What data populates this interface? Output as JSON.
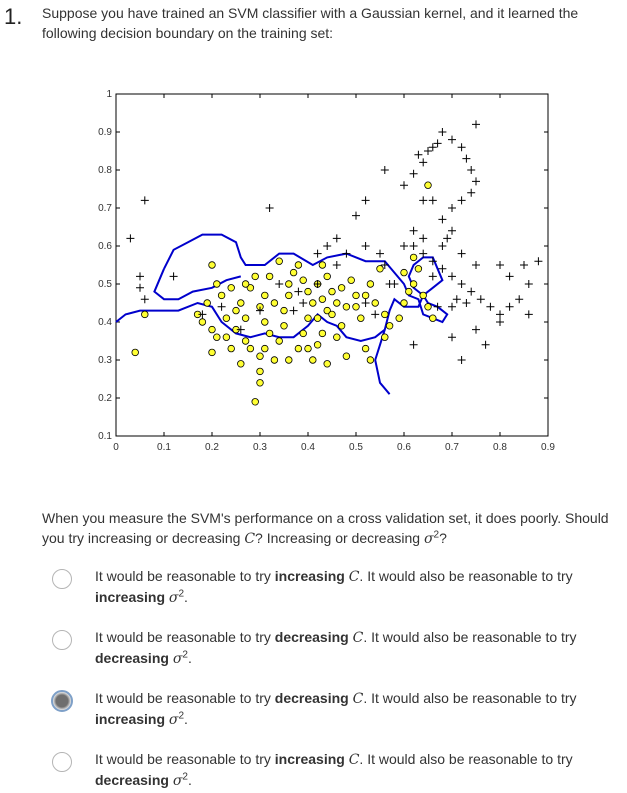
{
  "question": {
    "number": "1.",
    "text": "Suppose you have trained an SVM classifier with a Gaussian kernel, and it learned the following decision boundary on the training set:",
    "followup_a": "When you measure the SVM's performance on a cross validation set, it does poorly. Should you try increasing or decreasing",
    "followup_b": "? Increasing or decreasing",
    "followup_c": "?",
    "C": "C",
    "sigma": "σ",
    "sq": "2"
  },
  "options": [
    {
      "prefix": "It would be reasonable to try",
      "action1": "increasing",
      "mid": ". It would also be reasonable to try",
      "action2": "increasing",
      "selected": false
    },
    {
      "prefix": "It would be reasonable to try",
      "action1": "decreasing",
      "mid": ". It would also be reasonable to try",
      "action2": "decreasing",
      "selected": false
    },
    {
      "prefix": "It would be reasonable to try",
      "action1": "decreasing",
      "mid": ". It would also be reasonable to try",
      "action2": "increasing",
      "selected": true
    },
    {
      "prefix": "It would be reasonable to try",
      "action1": "increasing",
      "mid": ". It would also be reasonable to try",
      "action2": "decreasing",
      "selected": false
    }
  ],
  "chart_data": {
    "type": "scatter",
    "xlim": [
      0,
      0.9
    ],
    "ylim": [
      0.1,
      1
    ],
    "xticks": [
      "0",
      "0.1",
      "0.2",
      "0.3",
      "0.4",
      "0.5",
      "0.6",
      "0.7",
      "0.8",
      "0.9"
    ],
    "yticks": [
      "0.1",
      "0.2",
      "0.3",
      "0.4",
      "0.5",
      "0.6",
      "0.7",
      "0.8",
      "0.9",
      "1"
    ],
    "colors": {
      "negative_fill": "#ffff33",
      "boundary": "#0000cc",
      "positive": "#000000"
    },
    "series": [
      {
        "marker": "circle",
        "points": [
          [
            0.06,
            0.42
          ],
          [
            0.04,
            0.32
          ],
          [
            0.2,
            0.32
          ],
          [
            0.2,
            0.38
          ],
          [
            0.17,
            0.42
          ],
          [
            0.22,
            0.47
          ],
          [
            0.24,
            0.49
          ],
          [
            0.23,
            0.41
          ],
          [
            0.25,
            0.43
          ],
          [
            0.26,
            0.45
          ],
          [
            0.27,
            0.41
          ],
          [
            0.25,
            0.38
          ],
          [
            0.23,
            0.36
          ],
          [
            0.27,
            0.35
          ],
          [
            0.28,
            0.33
          ],
          [
            0.26,
            0.29
          ],
          [
            0.3,
            0.31
          ],
          [
            0.3,
            0.27
          ],
          [
            0.33,
            0.3
          ],
          [
            0.31,
            0.33
          ],
          [
            0.32,
            0.37
          ],
          [
            0.34,
            0.35
          ],
          [
            0.35,
            0.39
          ],
          [
            0.3,
            0.44
          ],
          [
            0.31,
            0.47
          ],
          [
            0.33,
            0.45
          ],
          [
            0.35,
            0.43
          ],
          [
            0.36,
            0.47
          ],
          [
            0.36,
            0.5
          ],
          [
            0.37,
            0.53
          ],
          [
            0.38,
            0.55
          ],
          [
            0.39,
            0.51
          ],
          [
            0.4,
            0.48
          ],
          [
            0.41,
            0.45
          ],
          [
            0.4,
            0.41
          ],
          [
            0.39,
            0.37
          ],
          [
            0.38,
            0.33
          ],
          [
            0.36,
            0.3
          ],
          [
            0.4,
            0.33
          ],
          [
            0.42,
            0.34
          ],
          [
            0.43,
            0.37
          ],
          [
            0.42,
            0.41
          ],
          [
            0.44,
            0.43
          ],
          [
            0.43,
            0.46
          ],
          [
            0.42,
            0.5
          ],
          [
            0.44,
            0.52
          ],
          [
            0.43,
            0.55
          ],
          [
            0.45,
            0.48
          ],
          [
            0.46,
            0.45
          ],
          [
            0.45,
            0.42
          ],
          [
            0.47,
            0.39
          ],
          [
            0.46,
            0.36
          ],
          [
            0.48,
            0.44
          ],
          [
            0.47,
            0.49
          ],
          [
            0.49,
            0.51
          ],
          [
            0.5,
            0.47
          ],
          [
            0.5,
            0.44
          ],
          [
            0.51,
            0.41
          ],
          [
            0.52,
            0.47
          ],
          [
            0.53,
            0.5
          ],
          [
            0.55,
            0.54
          ],
          [
            0.54,
            0.45
          ],
          [
            0.56,
            0.42
          ],
          [
            0.57,
            0.39
          ],
          [
            0.59,
            0.41
          ],
          [
            0.6,
            0.45
          ],
          [
            0.61,
            0.48
          ],
          [
            0.62,
            0.5
          ],
          [
            0.64,
            0.47
          ],
          [
            0.65,
            0.44
          ],
          [
            0.66,
            0.41
          ],
          [
            0.63,
            0.54
          ],
          [
            0.62,
            0.57
          ],
          [
            0.6,
            0.53
          ],
          [
            0.65,
            0.76
          ],
          [
            0.28,
            0.49
          ],
          [
            0.29,
            0.52
          ],
          [
            0.32,
            0.52
          ],
          [
            0.34,
            0.56
          ],
          [
            0.2,
            0.55
          ],
          [
            0.27,
            0.5
          ],
          [
            0.31,
            0.4
          ],
          [
            0.44,
            0.29
          ],
          [
            0.41,
            0.3
          ],
          [
            0.48,
            0.31
          ],
          [
            0.29,
            0.19
          ],
          [
            0.3,
            0.24
          ],
          [
            0.24,
            0.33
          ],
          [
            0.21,
            0.36
          ],
          [
            0.18,
            0.4
          ],
          [
            0.19,
            0.45
          ],
          [
            0.21,
            0.5
          ],
          [
            0.52,
            0.33
          ],
          [
            0.53,
            0.3
          ],
          [
            0.56,
            0.36
          ]
        ]
      },
      {
        "marker": "plus",
        "points": [
          [
            0.06,
            0.46
          ],
          [
            0.05,
            0.49
          ],
          [
            0.12,
            0.52
          ],
          [
            0.05,
            0.52
          ],
          [
            0.06,
            0.72
          ],
          [
            0.03,
            0.62
          ],
          [
            0.18,
            0.42
          ],
          [
            0.22,
            0.44
          ],
          [
            0.26,
            0.38
          ],
          [
            0.3,
            0.43
          ],
          [
            0.37,
            0.43
          ],
          [
            0.39,
            0.45
          ],
          [
            0.46,
            0.55
          ],
          [
            0.48,
            0.58
          ],
          [
            0.52,
            0.6
          ],
          [
            0.55,
            0.58
          ],
          [
            0.56,
            0.55
          ],
          [
            0.58,
            0.5
          ],
          [
            0.6,
            0.6
          ],
          [
            0.62,
            0.6
          ],
          [
            0.64,
            0.58
          ],
          [
            0.66,
            0.56
          ],
          [
            0.68,
            0.54
          ],
          [
            0.7,
            0.52
          ],
          [
            0.72,
            0.5
          ],
          [
            0.74,
            0.48
          ],
          [
            0.76,
            0.46
          ],
          [
            0.78,
            0.44
          ],
          [
            0.8,
            0.42
          ],
          [
            0.82,
            0.44
          ],
          [
            0.84,
            0.46
          ],
          [
            0.86,
            0.42
          ],
          [
            0.7,
            0.36
          ],
          [
            0.75,
            0.38
          ],
          [
            0.8,
            0.4
          ],
          [
            0.77,
            0.34
          ],
          [
            0.72,
            0.3
          ],
          [
            0.62,
            0.34
          ],
          [
            0.67,
            0.44
          ],
          [
            0.7,
            0.44
          ],
          [
            0.71,
            0.46
          ],
          [
            0.73,
            0.45
          ],
          [
            0.6,
            0.76
          ],
          [
            0.62,
            0.79
          ],
          [
            0.64,
            0.82
          ],
          [
            0.65,
            0.85
          ],
          [
            0.67,
            0.87
          ],
          [
            0.7,
            0.88
          ],
          [
            0.72,
            0.86
          ],
          [
            0.73,
            0.83
          ],
          [
            0.74,
            0.8
          ],
          [
            0.75,
            0.77
          ],
          [
            0.74,
            0.74
          ],
          [
            0.72,
            0.72
          ],
          [
            0.7,
            0.7
          ],
          [
            0.68,
            0.67
          ],
          [
            0.66,
            0.72
          ],
          [
            0.64,
            0.72
          ],
          [
            0.62,
            0.64
          ],
          [
            0.64,
            0.62
          ],
          [
            0.68,
            0.6
          ],
          [
            0.66,
            0.52
          ],
          [
            0.5,
            0.68
          ],
          [
            0.52,
            0.72
          ],
          [
            0.46,
            0.62
          ],
          [
            0.44,
            0.6
          ],
          [
            0.42,
            0.58
          ],
          [
            0.32,
            0.7
          ],
          [
            0.56,
            0.8
          ],
          [
            0.75,
            0.92
          ],
          [
            0.68,
            0.9
          ],
          [
            0.66,
            0.86
          ],
          [
            0.63,
            0.84
          ],
          [
            0.7,
            0.64
          ],
          [
            0.69,
            0.62
          ],
          [
            0.72,
            0.58
          ],
          [
            0.8,
            0.55
          ],
          [
            0.85,
            0.55
          ],
          [
            0.88,
            0.56
          ],
          [
            0.86,
            0.5
          ],
          [
            0.82,
            0.52
          ],
          [
            0.75,
            0.55
          ],
          [
            0.57,
            0.5
          ],
          [
            0.54,
            0.42
          ],
          [
            0.52,
            0.45
          ],
          [
            0.34,
            0.5
          ],
          [
            0.38,
            0.48
          ],
          [
            0.42,
            0.5
          ]
        ]
      }
    ],
    "boundary": [
      [
        [
          0.1,
          0.54
        ],
        [
          0.12,
          0.59
        ],
        [
          0.15,
          0.61
        ],
        [
          0.18,
          0.63
        ],
        [
          0.22,
          0.63
        ],
        [
          0.25,
          0.61
        ],
        [
          0.26,
          0.57
        ],
        [
          0.27,
          0.55
        ],
        [
          0.31,
          0.55
        ],
        [
          0.34,
          0.58
        ],
        [
          0.37,
          0.58
        ],
        [
          0.41,
          0.55
        ],
        [
          0.44,
          0.57
        ],
        [
          0.48,
          0.58
        ],
        [
          0.52,
          0.56
        ],
        [
          0.56,
          0.56
        ],
        [
          0.58,
          0.53
        ],
        [
          0.6,
          0.5
        ],
        [
          0.61,
          0.47
        ],
        [
          0.63,
          0.46
        ],
        [
          0.64,
          0.42
        ],
        [
          0.66,
          0.41
        ],
        [
          0.68,
          0.4
        ],
        [
          0.69,
          0.42
        ],
        [
          0.67,
          0.44
        ],
        [
          0.65,
          0.45
        ],
        [
          0.64,
          0.47
        ],
        [
          0.62,
          0.49
        ],
        [
          0.61,
          0.52
        ],
        [
          0.62,
          0.55
        ],
        [
          0.64,
          0.57
        ],
        [
          0.66,
          0.57
        ],
        [
          0.67,
          0.54
        ],
        [
          0.68,
          0.51
        ],
        [
          0.66,
          0.49
        ],
        [
          0.64,
          0.47
        ],
        [
          0.63,
          0.44
        ],
        [
          0.6,
          0.44
        ],
        [
          0.58,
          0.46
        ],
        [
          0.57,
          0.43
        ],
        [
          0.56,
          0.38
        ],
        [
          0.54,
          0.36
        ],
        [
          0.51,
          0.35
        ],
        [
          0.48,
          0.36
        ],
        [
          0.46,
          0.39
        ],
        [
          0.44,
          0.4
        ],
        [
          0.42,
          0.42
        ],
        [
          0.4,
          0.39
        ],
        [
          0.37,
          0.36
        ],
        [
          0.34,
          0.36
        ],
        [
          0.31,
          0.37
        ],
        [
          0.28,
          0.36
        ],
        [
          0.25,
          0.37
        ],
        [
          0.22,
          0.4
        ],
        [
          0.2,
          0.44
        ],
        [
          0.17,
          0.45
        ],
        [
          0.13,
          0.43
        ],
        [
          0.09,
          0.43
        ],
        [
          0.05,
          0.43
        ],
        [
          0.02,
          0.42
        ],
        [
          0.0,
          0.4
        ]
      ],
      [
        [
          0.56,
          0.38
        ],
        [
          0.55,
          0.34
        ],
        [
          0.54,
          0.3
        ],
        [
          0.55,
          0.24
        ],
        [
          0.57,
          0.21
        ]
      ],
      [
        [
          0.1,
          0.54
        ],
        [
          0.09,
          0.51
        ],
        [
          0.08,
          0.48
        ],
        [
          0.1,
          0.46
        ],
        [
          0.13,
          0.46
        ],
        [
          0.16,
          0.48
        ],
        [
          0.2,
          0.49
        ],
        [
          0.23,
          0.51
        ],
        [
          0.26,
          0.52
        ]
      ]
    ]
  }
}
